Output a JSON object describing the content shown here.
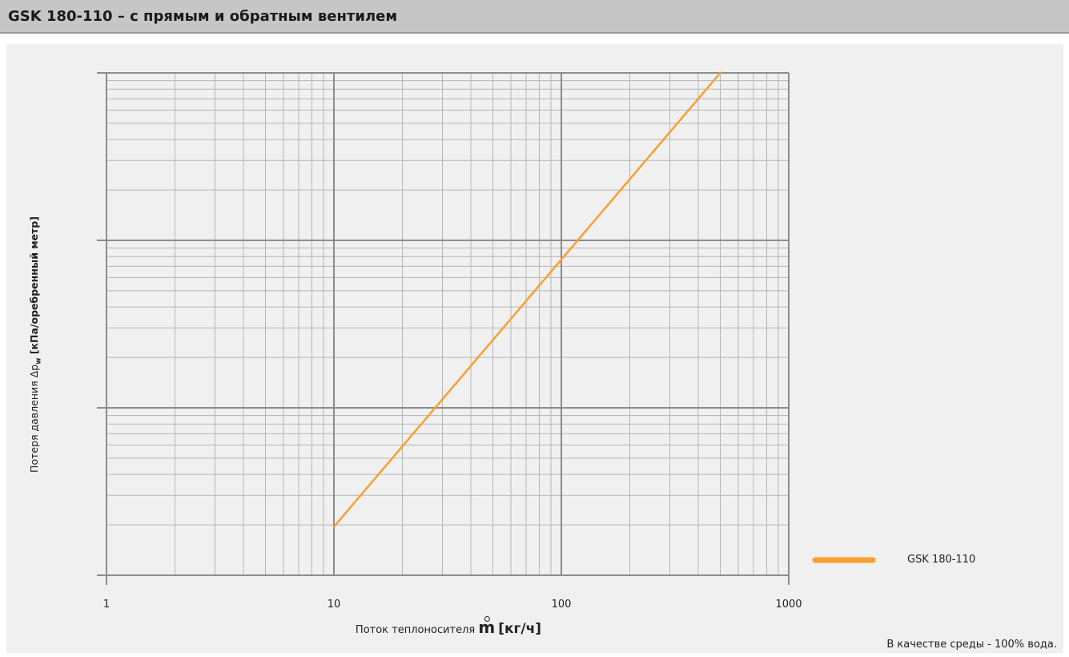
{
  "title": "GSK 180-110 – с прямым и обратным вентилем",
  "footnote": "В качестве среды - 100% вода.",
  "chart_data": {
    "type": "line",
    "title": "GSK 180-110 – с прямым и обратным вентилем",
    "xlabel_text": "Поток теплоносителя",
    "xlabel_symbol": "m",
    "xlabel_unit": "[кг/ч]",
    "ylabel_text": "Потеря давления Δp",
    "ylabel_sub": "w",
    "ylabel_unit": "[кПа/оребренный метр]",
    "x_scale": "log",
    "xlim": [
      1,
      1000
    ],
    "x_ticks": [
      "1",
      "10",
      "100",
      "1000"
    ],
    "y_scale": "log",
    "y_decades": 3,
    "y_tick_labels_shown": false,
    "grid": true,
    "legend_position": "bottom-right",
    "series": [
      {
        "name": "GSK 180-110",
        "color": "#f7a030",
        "x": [
          10,
          500
        ],
        "y_decades_from_bottom": [
          0.29,
          3.0
        ]
      }
    ]
  }
}
